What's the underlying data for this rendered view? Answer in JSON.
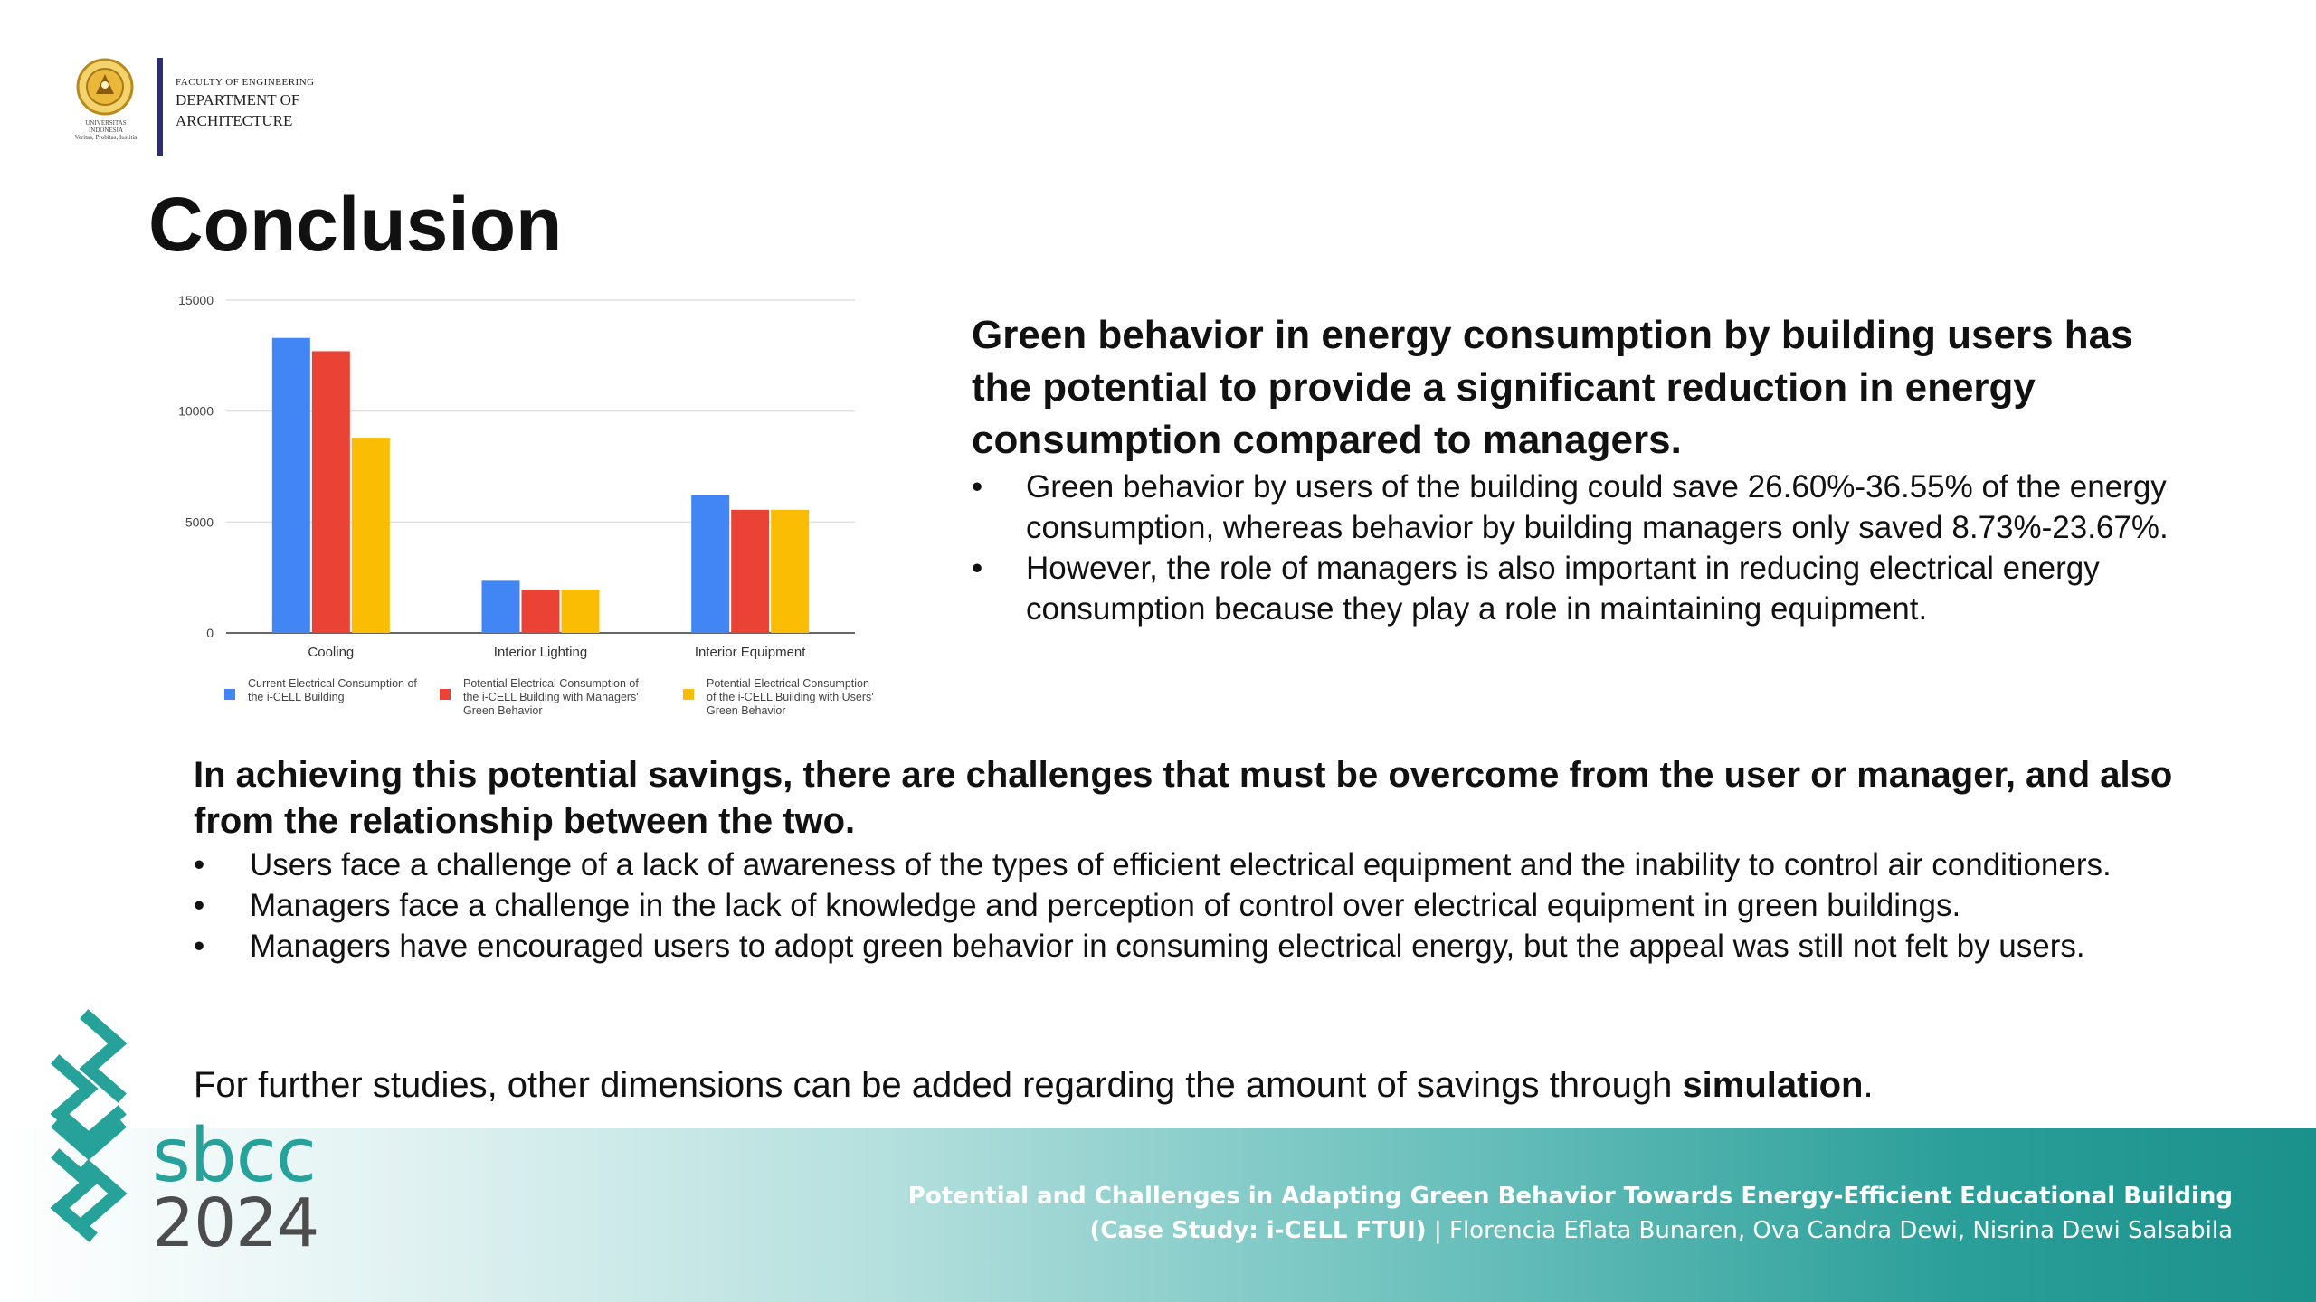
{
  "header": {
    "faculty": "FACULTY OF ENGINEERING",
    "department_line1": "DEPARTMENT OF",
    "department_line2": "ARCHITECTURE",
    "seal_caption": "UNIVERSITAS INDONESIA",
    "seal_motto": "Veritas, Probitas, Iustitia"
  },
  "title": "Conclusion",
  "chart_data": {
    "type": "bar",
    "categories": [
      "Cooling",
      "Interior Lighting",
      "Interior Equipment"
    ],
    "series": [
      {
        "name": "Current Electrical Consumption of the i-CELL Building",
        "values": [
          13300,
          2350,
          6200
        ],
        "color": "#4285f4"
      },
      {
        "name": "Potential Electrical Consumption of the i-CELL Building with Managers' Green Behavior",
        "values": [
          12700,
          1950,
          5550
        ],
        "color": "#ea4335"
      },
      {
        "name": "Potential Electrical Consumption of the i-CELL Building with Users' Green Behavior",
        "values": [
          8800,
          1950,
          5550
        ],
        "color": "#fbbc04"
      }
    ],
    "yticks": [
      "0",
      "5000",
      "10000",
      "15000"
    ],
    "ylim": [
      0,
      15000
    ],
    "title": "",
    "xlabel": "",
    "ylabel": "",
    "grid": true,
    "legend": "bottom"
  },
  "green": {
    "heading": "Green behavior in energy consumption by building users has the potential to provide a significant reduction in energy consumption compared to managers.",
    "bullets": [
      "Green behavior by users of the building could save 26.60%-36.55% of the energy consumption, whereas behavior by building managers only saved 8.73%-23.67%.",
      "However, the role of managers is also important in reducing electrical energy consumption because they play a role in maintaining equipment."
    ]
  },
  "challenge": {
    "heading": "In achieving this potential savings, there are challenges that must be overcome from the user or manager, and also from the relationship between the two.",
    "bullets": [
      "Users face a challenge of a lack of awareness of the types of efficient electrical equipment and the inability to control air conditioners.",
      "Managers face a challenge in the lack of knowledge and perception of control over electrical equipment in green buildings.",
      "Managers have encouraged users to adopt green behavior in consuming electrical energy, but the appeal was still not felt by users."
    ]
  },
  "further": {
    "text": "For further studies, other dimensions can be added regarding the amount of savings through ",
    "bold": "simulation",
    "end": "."
  },
  "footer": {
    "line1": "Potential and Challenges in Adapting Green Behavior Towards Energy-Efficient Educational Building",
    "line2_bold": "(Case Study: i-CELL FTUI)",
    "line2_sep": " | ",
    "line2_authors": "Florencia Eflata Bunaren, Ova Candra Dewi, Nisrina Dewi Salsabila"
  },
  "brand": {
    "name": "sbcc",
    "year": "2024",
    "colors": {
      "teal": "#26a29b",
      "grey": "#4d4d4d",
      "navy_bar": "#2b2e6e"
    }
  }
}
